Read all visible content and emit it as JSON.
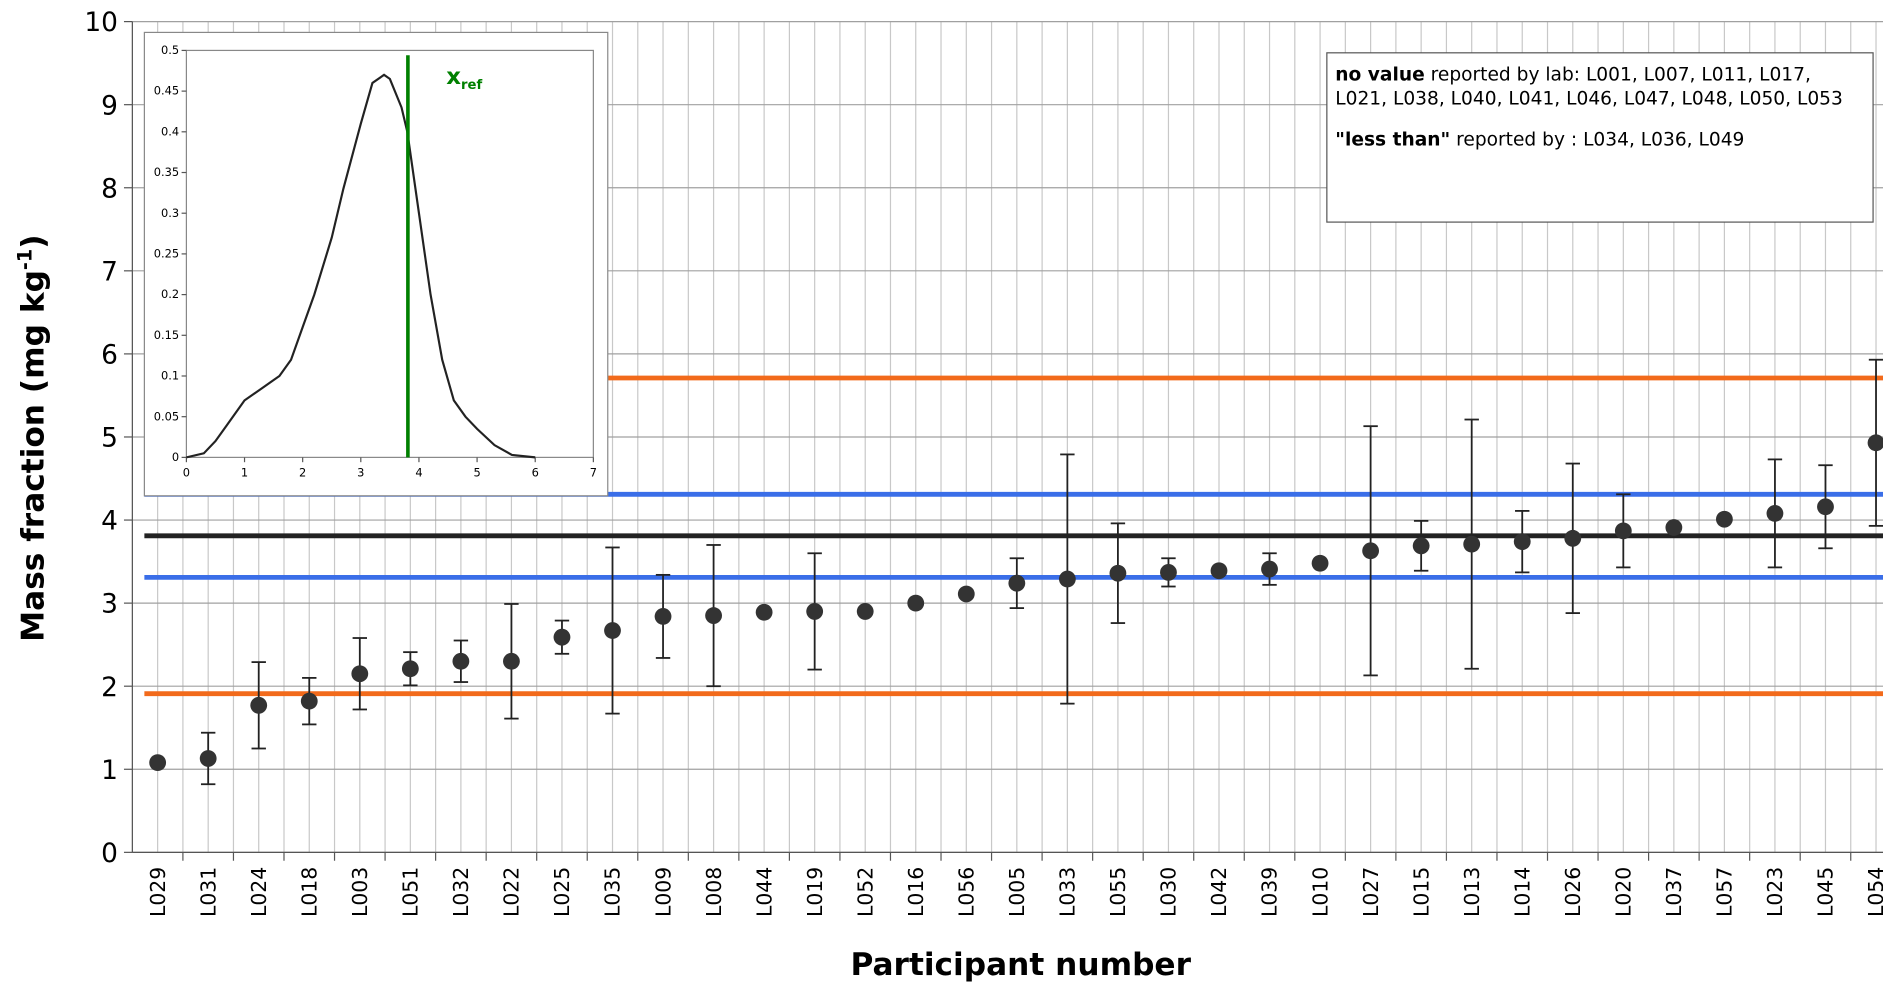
{
  "chart_data": [
    {
      "type": "errorbar",
      "y_label": "Mass fraction (mg kg",
      "y_label_sup": "-1",
      "y_label_end": ")",
      "x_label": "Participant number",
      "categories": [
        "L029",
        "L031",
        "L024",
        "L018",
        "L003",
        "L051",
        "L032",
        "L022",
        "L025",
        "L035",
        "L009",
        "L008",
        "L044",
        "L019",
        "L052",
        "L016",
        "L056",
        "L005",
        "L033",
        "L055",
        "L030",
        "L042",
        "L039",
        "L010",
        "L027",
        "L015",
        "L013",
        "L014",
        "L026",
        "L020",
        "L037",
        "L057",
        "L023",
        "L045",
        "L054"
      ],
      "values": [
        1.08,
        1.13,
        1.77,
        1.82,
        2.15,
        2.21,
        2.3,
        2.3,
        2.59,
        2.67,
        2.84,
        2.85,
        2.89,
        2.9,
        2.9,
        3.0,
        3.11,
        3.24,
        3.29,
        3.36,
        3.37,
        3.39,
        3.41,
        3.48,
        3.63,
        3.69,
        3.71,
        3.74,
        3.78,
        3.87,
        3.91,
        4.01,
        4.08,
        4.16,
        4.93
      ],
      "errors": [
        null,
        0.31,
        0.52,
        0.28,
        0.43,
        0.2,
        0.25,
        0.69,
        0.2,
        1.0,
        0.5,
        0.85,
        null,
        0.7,
        null,
        null,
        null,
        0.3,
        1.5,
        0.6,
        0.17,
        null,
        0.19,
        null,
        1.5,
        0.3,
        1.5,
        0.37,
        0.9,
        0.44,
        null,
        null,
        0.65,
        0.5,
        1.0
      ],
      "color": "#333333",
      "reference_lines": [
        {
          "value": 5.71,
          "color": "#f26a1b"
        },
        {
          "value": 4.31,
          "color": "#3a6ee8"
        },
        {
          "value": 3.81,
          "color": "#222222"
        },
        {
          "value": 3.31,
          "color": "#3a6ee8"
        },
        {
          "value": 1.91,
          "color": "#f26a1b"
        }
      ],
      "ylim": [
        0,
        10
      ],
      "yticks": [
        0,
        1,
        2,
        3,
        4,
        5,
        6,
        7,
        8,
        9,
        10
      ],
      "grid": true,
      "annotations": [
        {
          "bold": "no value",
          "text": " reported by lab: L001, L007, L011, L017, L021, L038, L040, L041, L046, L047, L048, L050, L053"
        },
        {
          "bold": "\"less than\"",
          "text": " reported by : L034, L036, L049"
        }
      ]
    },
    {
      "type": "line",
      "x": [
        0,
        0.3,
        0.5,
        0.7,
        1,
        1.3,
        1.6,
        1.8,
        2,
        2.2,
        2.5,
        2.7,
        3,
        3.2,
        3.4,
        3.5,
        3.7,
        3.8,
        4,
        4.2,
        4.4,
        4.6,
        4.8,
        5,
        5.3,
        5.6,
        6
      ],
      "values": [
        0,
        0.005,
        0.02,
        0.04,
        0.07,
        0.085,
        0.1,
        0.12,
        0.16,
        0.2,
        0.27,
        0.33,
        0.41,
        0.46,
        0.47,
        0.465,
        0.43,
        0.4,
        0.3,
        0.2,
        0.12,
        0.07,
        0.05,
        0.035,
        0.015,
        0.003,
        0
      ],
      "color": "#222222",
      "xref": 3.81,
      "xref_color": "#008000",
      "xref_label": "x",
      "xref_label_sub": "ref",
      "xlim": [
        0,
        7
      ],
      "xticks": [
        0,
        1,
        2,
        3,
        4,
        5,
        6,
        7
      ],
      "ylim": [
        0,
        0.5
      ],
      "yticks": [
        0,
        0.05,
        0.1,
        0.15,
        0.2,
        0.25,
        0.3,
        0.35,
        0.4,
        0.45,
        0.5
      ]
    }
  ]
}
